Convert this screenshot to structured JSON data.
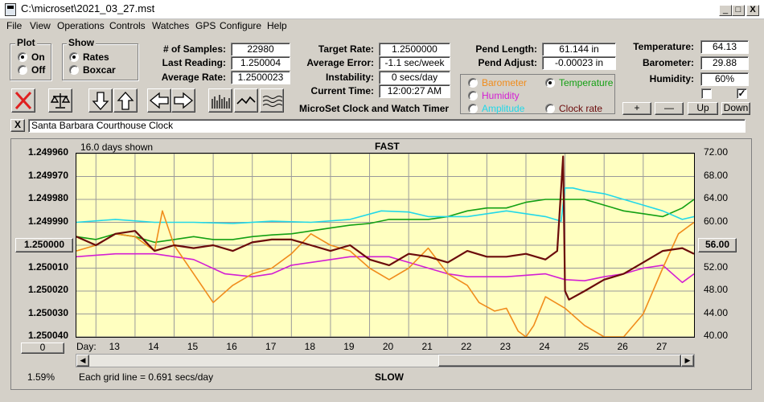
{
  "window": {
    "title": "C:\\microset\\2021_03_27.mst",
    "minimize": "_",
    "maximize": "□",
    "close": "X"
  },
  "menu": [
    "File",
    "View",
    "Operations",
    "Controls",
    "Watches",
    "GPS",
    "Configure",
    "Help"
  ],
  "plot_group": {
    "title": "Plot",
    "options": [
      "On",
      "Off"
    ],
    "selected": "On"
  },
  "show_group": {
    "title": "Show",
    "options": [
      "Rates",
      "Boxcar"
    ],
    "selected": "Rates"
  },
  "stats": {
    "samples_label": "# of Samples:",
    "samples": "22980",
    "last_reading_label": "Last Reading:",
    "last_reading": "1.250004",
    "avg_rate_label": "Average Rate:",
    "avg_rate": "1.2500023",
    "target_rate_label": "Target Rate:",
    "target_rate": "1.2500000",
    "avg_error_label": "Average Error:",
    "avg_error": "-1.1 sec/week",
    "instability_label": "Instability:",
    "instability": "0 secs/day",
    "current_time_label": "Current Time:",
    "current_time": "12:00:27 AM",
    "pend_length_label": "Pend Length:",
    "pend_length": "61.144 in",
    "pend_adjust_label": "Pend Adjust:",
    "pend_adjust": "-0.00023 in",
    "temperature_label": "Temperature:",
    "temperature": "64.13",
    "barometer_label": "Barometer:",
    "barometer": "29.88",
    "humidity_label": "Humidity:",
    "humidity": "60%"
  },
  "app_name": "MicroSet Clock and Watch Timer",
  "series_options": [
    {
      "label": "Barometer",
      "color": "#f08c1c",
      "selected": false
    },
    {
      "label": "Temperature",
      "color": "#13a013",
      "selected": true
    },
    {
      "label": "Humidity",
      "color": "#d31fd3",
      "selected": false
    },
    {
      "label": "Clock rate",
      "color": "#6b0b0b",
      "selected": false
    },
    {
      "label": "Amplitude",
      "color": "#22d8e8",
      "selected": false
    }
  ],
  "scale_buttons": [
    "+",
    "—",
    "Up",
    "Down"
  ],
  "checkbox_right": "✓",
  "clock_name": "Santa Barbara Courthouse Clock",
  "clock_close": "X",
  "chart": {
    "days_shown": "16.0 days shown",
    "top_label": "FAST",
    "bottom_label": "SLOW",
    "day_label": "Day:",
    "grid_note": "Each grid line = 0.691 secs/day",
    "left_button": "1.250000",
    "right_button": "56.00",
    "bottom_left_button": "0",
    "percent": "1.59%"
  },
  "chart_data": {
    "type": "line",
    "x_label": "Day:",
    "x_ticks": [
      13,
      14,
      15,
      16,
      17,
      18,
      19,
      20,
      21,
      22,
      23,
      24,
      25,
      26,
      27
    ],
    "y_left_ticks": [
      "1.249960",
      "1.249970",
      "1.249980",
      "1.249990",
      "1.250000",
      "1.250010",
      "1.250020",
      "1.250030",
      "1.250040"
    ],
    "y_right_ticks": [
      "72.00",
      "68.00",
      "64.00",
      "60.00",
      "56.00",
      "52.00",
      "48.00",
      "44.00",
      "40.00"
    ],
    "ylim_right": [
      40,
      72
    ],
    "xlim": [
      12,
      27.8
    ],
    "grid": true,
    "series": [
      {
        "name": "Temperature",
        "color": "#13a013",
        "x": [
          12,
          12.5,
          13,
          13.5,
          14,
          14.5,
          15,
          15.5,
          16,
          16.5,
          17,
          17.5,
          18,
          18.5,
          19,
          19.5,
          20,
          20.5,
          21,
          21.5,
          22,
          22.5,
          23,
          23.5,
          24,
          24.5,
          25,
          25.5,
          26,
          26.5,
          27,
          27.5,
          27.8
        ],
        "y": [
          57.5,
          57,
          58,
          57.5,
          56.5,
          57,
          57.5,
          57,
          57,
          57.5,
          57.8,
          58,
          58.5,
          59,
          59.5,
          59.8,
          60.5,
          60.5,
          60.5,
          61,
          62,
          62.5,
          62.5,
          63.5,
          64,
          64,
          64,
          63,
          62,
          61.5,
          61,
          62.5,
          64
        ]
      },
      {
        "name": "Amplitude",
        "color": "#22d8e8",
        "x": [
          12,
          13,
          14,
          15,
          16,
          17,
          18,
          19,
          19.8,
          20.5,
          21,
          22,
          23,
          24,
          24.4,
          24.5,
          24.7,
          25,
          25.5,
          26,
          26.5,
          27,
          27.5,
          27.8
        ],
        "y": [
          60,
          60.5,
          60,
          60,
          59.8,
          60.2,
          60,
          60.5,
          62,
          61.8,
          61,
          61,
          62,
          61,
          60.2,
          66,
          66,
          65.5,
          65,
          64,
          63,
          62,
          60.5,
          61
        ]
      },
      {
        "name": "Humidity",
        "color": "#d31fd3",
        "x": [
          12,
          13,
          14,
          15,
          15.8,
          16.5,
          17,
          17.5,
          18,
          19,
          20,
          20.5,
          21,
          21.5,
          22,
          23,
          24,
          24.5,
          25,
          25.5,
          26,
          26.5,
          27,
          27.5,
          27.8
        ],
        "y": [
          54,
          54.5,
          54.5,
          53.5,
          51,
          50.5,
          51,
          52.5,
          53,
          54,
          54,
          53,
          52,
          51,
          50.5,
          50.5,
          51,
          50,
          49.8,
          50.5,
          51,
          52,
          52.5,
          49.5,
          51
        ]
      },
      {
        "name": "Barometer",
        "color": "#f08c1c",
        "x": [
          12,
          12.5,
          13,
          13.5,
          14,
          14.2,
          14.5,
          15,
          15.5,
          16,
          16.5,
          17,
          17.5,
          18,
          18.5,
          19,
          19.5,
          20,
          20.5,
          21,
          21.5,
          22,
          22.3,
          22.7,
          23,
          23.3,
          23.5,
          23.7,
          24,
          24.5,
          25,
          25.5,
          26,
          26.5,
          27,
          27.4,
          27.8
        ],
        "y": [
          55,
          56,
          58,
          57.5,
          55,
          62,
          56,
          51,
          46,
          49,
          51,
          52,
          54.5,
          58,
          56,
          55,
          52,
          50,
          52,
          55.5,
          51,
          49,
          46,
          44.5,
          45,
          41,
          40,
          42,
          47,
          45,
          42,
          40,
          40,
          44,
          52,
          58,
          60
        ]
      },
      {
        "name": "Clock rate",
        "color": "#6b0b0b",
        "x": [
          12,
          12.5,
          13,
          13.5,
          14,
          14.5,
          15,
          15.5,
          16,
          16.5,
          17,
          17.5,
          18,
          18.5,
          19,
          19.5,
          20,
          20.5,
          21,
          21.5,
          22,
          22.5,
          23,
          23.5,
          24,
          24.3,
          24.45,
          24.5,
          24.6,
          25,
          25.5,
          26,
          26.5,
          27,
          27.5,
          27.8
        ],
        "y": [
          57.5,
          56,
          58,
          58.5,
          55,
          56,
          55.5,
          56,
          55,
          56.5,
          57,
          57,
          56,
          55,
          56,
          53.5,
          52.5,
          54.5,
          54,
          53,
          55,
          54,
          54,
          54.5,
          53.5,
          55,
          71.5,
          48,
          46.5,
          48,
          50,
          51,
          53,
          55,
          55.5,
          54.5
        ]
      }
    ]
  }
}
